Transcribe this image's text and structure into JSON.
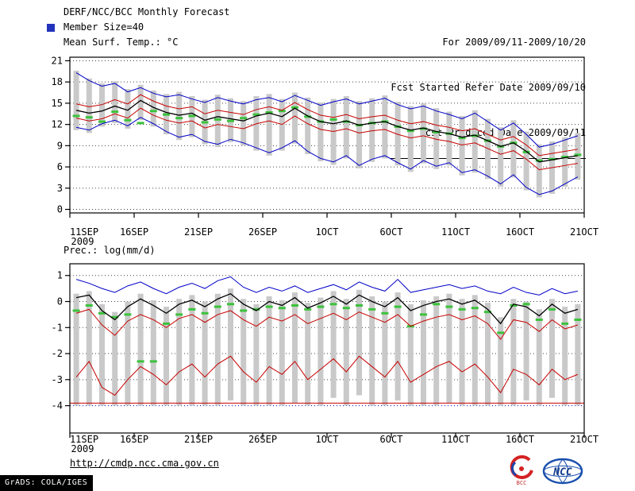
{
  "header": {
    "title": "DERF/NCC/BCC Monthly Forecast",
    "member_size": "Member Size=40",
    "top_var_label": "Mean Surf. Temp.: °C",
    "for_range": "For 2009/09/11-2009/10/20",
    "refer_date": "Fcst Started Refer Date 2009/09/10",
    "produced_date": "Fcst Produced Date 2009/09/11"
  },
  "bottom_var_label": "Prec.: log(mm/d)",
  "footer": {
    "url": "http://cmdp.ncc.cma.gov.cn",
    "grads_credit": "GrADS: COLA/IGES",
    "bcc_text": "BCC",
    "ncc_text": "NCC"
  },
  "colors": {
    "envelope_blue": "#0000c8",
    "quartile_red": "#c80000",
    "mean_black": "#000000",
    "obs_green": "#3cc23c",
    "spread_gray": "#c9c9c9",
    "grid": "#444444",
    "member_marker_blue": "#2233bb"
  },
  "chart_data": [
    {
      "type": "line",
      "title": "Mean Surf. Temp.: °C",
      "x_tick_labels": [
        "11SEP",
        "16SEP",
        "21SEP",
        "26SEP",
        "1OCT",
        "6OCT",
        "11OCT",
        "16OCT",
        "21OCT"
      ],
      "x_tick_days": [
        0,
        5,
        10,
        15,
        20,
        25,
        30,
        35,
        40
      ],
      "x_sub_label": "2009",
      "ylim": [
        0,
        21
      ],
      "yticks": [
        0,
        3,
        6,
        9,
        12,
        15,
        18,
        21
      ],
      "ytick_labels": [
        "0",
        "3",
        "6",
        "9",
        "12",
        "15",
        "18",
        "21"
      ],
      "bars": {
        "name": "ensemble-spread",
        "color": "#c9c9c9",
        "low": [
          11.2,
          10.8,
          11.7,
          12.2,
          11.4,
          12.6,
          11.7,
          10.6,
          9.8,
          10.2,
          9.2,
          8.8,
          9.5,
          9.0,
          8.3,
          7.6,
          8.3,
          9.3,
          7.8,
          6.8,
          6.3,
          7.2,
          5.8,
          6.7,
          7.2,
          6.2,
          5.3,
          6.5,
          5.7,
          6.2,
          4.8,
          5.2,
          4.3,
          3.2,
          4.5,
          2.7,
          1.7,
          2.2,
          3.2,
          4.2
        ],
        "high": [
          19.6,
          18.5,
          17.8,
          18.1,
          17.0,
          17.6,
          16.8,
          16.3,
          16.6,
          16.0,
          15.5,
          16.2,
          15.7,
          15.3,
          16.0,
          16.3,
          15.6,
          16.5,
          15.8,
          15.1,
          15.6,
          16.0,
          15.3,
          15.7,
          16.1,
          15.2,
          14.6,
          15.0,
          14.3,
          13.8,
          13.2,
          14.0,
          12.8,
          11.6,
          12.6,
          11.0,
          9.2,
          9.6,
          10.2,
          10.8
        ]
      },
      "markers": {
        "name": "observation-dashes",
        "color": "#3cc23c",
        "values": [
          13.2,
          13.0,
          12.4,
          13.8,
          12.6,
          12.2,
          13.9,
          13.4,
          12.9,
          13.2,
          12.3,
          12.7,
          12.5,
          12.9,
          13.4,
          13.7,
          13.9,
          14.4,
          13.1,
          12.4,
          12.7,
          12.4,
          11.9,
          12.2,
          12.4,
          11.7,
          11.1,
          11.4,
          10.9,
          10.7,
          10.1,
          10.4,
          9.7,
          8.9,
          9.4,
          8.1,
          6.9,
          7.1,
          7.4,
          7.7
        ]
      },
      "series": [
        {
          "name": "ensemble-max",
          "color": "#0000c8",
          "width": 1,
          "values": [
            19.3,
            18.2,
            17.4,
            17.8,
            16.6,
            17.2,
            16.4,
            15.9,
            16.2,
            15.6,
            15.1,
            15.8,
            15.3,
            14.9,
            15.5,
            15.8,
            15.2,
            16.1,
            15.4,
            14.7,
            15.2,
            15.6,
            14.9,
            15.3,
            15.7,
            14.8,
            14.2,
            14.6,
            13.9,
            13.4,
            12.8,
            13.6,
            12.4,
            11.2,
            12.2,
            10.6,
            8.8,
            9.2,
            9.8,
            10.4
          ]
        },
        {
          "name": "upper-quartile",
          "color": "#c80000",
          "width": 1,
          "values": [
            14.9,
            14.5,
            14.8,
            15.5,
            14.9,
            16.2,
            15.3,
            14.6,
            14.2,
            14.5,
            13.5,
            14.0,
            13.7,
            13.4,
            14.1,
            14.5,
            14.0,
            15.1,
            14.1,
            13.3,
            13.0,
            13.4,
            12.8,
            13.1,
            13.3,
            12.6,
            12.1,
            12.4,
            11.9,
            11.6,
            11.1,
            11.4,
            10.6,
            9.8,
            10.3,
            9.1,
            7.6,
            7.9,
            8.2,
            8.5
          ]
        },
        {
          "name": "ensemble-mean",
          "color": "#000000",
          "width": 1.3,
          "values": [
            14.0,
            13.6,
            13.9,
            14.6,
            14.0,
            15.4,
            14.4,
            13.7,
            13.3,
            13.6,
            12.6,
            13.1,
            12.8,
            12.5,
            13.2,
            13.6,
            13.1,
            14.3,
            13.2,
            12.4,
            12.1,
            12.5,
            11.9,
            12.2,
            12.4,
            11.7,
            11.2,
            11.5,
            11.0,
            10.7,
            10.2,
            10.5,
            9.7,
            8.9,
            9.4,
            8.2,
            6.7,
            7.0,
            7.3,
            7.6
          ]
        },
        {
          "name": "lower-quartile",
          "color": "#c80000",
          "width": 1,
          "values": [
            12.9,
            12.5,
            12.8,
            13.5,
            12.9,
            14.3,
            13.3,
            12.6,
            12.2,
            12.5,
            11.5,
            12.0,
            11.7,
            11.4,
            12.1,
            12.5,
            12.0,
            13.2,
            12.1,
            11.3,
            11.0,
            11.4,
            10.8,
            11.1,
            11.3,
            10.6,
            10.1,
            10.4,
            9.9,
            9.6,
            9.1,
            9.4,
            8.6,
            7.8,
            8.3,
            7.1,
            5.6,
            5.9,
            6.2,
            6.5
          ]
        },
        {
          "name": "ensemble-min",
          "color": "#0000c8",
          "width": 1,
          "values": [
            11.6,
            11.2,
            12.1,
            12.6,
            11.8,
            13.0,
            12.1,
            11.0,
            10.2,
            10.6,
            9.6,
            9.2,
            9.9,
            9.4,
            8.7,
            8.0,
            8.7,
            9.7,
            8.2,
            7.2,
            6.7,
            7.6,
            6.2,
            7.1,
            7.6,
            6.6,
            5.7,
            6.9,
            6.1,
            6.6,
            5.2,
            5.6,
            4.7,
            3.6,
            4.9,
            3.1,
            2.1,
            2.6,
            3.6,
            4.6
          ]
        }
      ]
    },
    {
      "type": "line",
      "title": "Prec.: log(mm/d)",
      "x_tick_labels": [
        "11SEP",
        "16SEP",
        "21SEP",
        "26SEP",
        "1OCT",
        "6OCT",
        "11OCT",
        "16OCT",
        "21OCT"
      ],
      "x_tick_days": [
        0,
        5,
        10,
        15,
        20,
        25,
        30,
        35,
        40
      ],
      "x_sub_label": "2009",
      "ylim": [
        -4,
        1
      ],
      "yticks": [
        -4,
        -3,
        -2,
        -1,
        0,
        1
      ],
      "ytick_labels": [
        "-4",
        "-3",
        "-2",
        "-1",
        "0",
        "1"
      ],
      "grid_overrides": {
        "-4": "#0000c8"
      },
      "flat_lines": [
        {
          "name": "min-floor-red",
          "value": -3.9,
          "color": "#c80000",
          "style": "solid"
        }
      ],
      "bars": {
        "name": "ensemble-spread",
        "color": "#c9c9c9",
        "low": [
          -4,
          -4,
          -4,
          -4,
          -4,
          -4,
          -4,
          -4,
          -4,
          -4,
          -4,
          -4,
          -3.8,
          -4,
          -4,
          -4,
          -4,
          -3.9,
          -4,
          -4,
          -3.7,
          -4,
          -3.6,
          -4,
          -4,
          -3.8,
          -4,
          -4,
          -4,
          -3.9,
          -4,
          -4,
          -4,
          -4,
          -4,
          -3.8,
          -4,
          -3.7,
          -4,
          -4
        ],
        "high": [
          0.3,
          0.4,
          -0.1,
          -0.4,
          0,
          0.3,
          0.05,
          -0.2,
          0.1,
          0.25,
          0,
          0.3,
          0.5,
          0.1,
          -0.1,
          0.2,
          0.05,
          0.35,
          -0.05,
          0.15,
          0.4,
          0.1,
          0.45,
          0.2,
          0,
          0.35,
          -0.1,
          0.05,
          0.2,
          0.3,
          0.1,
          0.25,
          -0.05,
          -0.6,
          0.1,
          0,
          -0.3,
          0.1,
          -0.2,
          -0.1
        ]
      },
      "markers": {
        "name": "observation-dashes",
        "color": "#3cc23c",
        "values": [
          -0.35,
          -0.15,
          -0.45,
          -0.6,
          -0.5,
          -2.3,
          -2.3,
          -0.85,
          -0.5,
          -0.3,
          -0.45,
          -0.2,
          -0.1,
          -0.35,
          -0.3,
          -0.2,
          -0.25,
          -0.15,
          -0.3,
          -0.2,
          -0.1,
          -0.25,
          -0.15,
          -0.3,
          -0.45,
          -0.2,
          -0.95,
          -0.5,
          -0.1,
          -0.2,
          -0.3,
          -0.25,
          -0.4,
          -1.2,
          -0.15,
          -0.1,
          -0.7,
          -0.3,
          -0.85,
          -0.7
        ]
      },
      "series": [
        {
          "name": "ensemble-max",
          "color": "#0000c8",
          "width": 1,
          "values": [
            0.85,
            0.7,
            0.5,
            0.35,
            0.6,
            0.75,
            0.5,
            0.3,
            0.55,
            0.7,
            0.5,
            0.8,
            0.95,
            0.55,
            0.35,
            0.55,
            0.4,
            0.6,
            0.35,
            0.5,
            0.65,
            0.45,
            0.75,
            0.55,
            0.4,
            0.85,
            0.35,
            0.45,
            0.55,
            0.65,
            0.5,
            0.6,
            0.4,
            0.3,
            0.55,
            0.35,
            0.25,
            0.5,
            0.3,
            0.4
          ]
        },
        {
          "name": "ensemble-median",
          "color": "#000000",
          "width": 1.3,
          "values": [
            0.15,
            0.25,
            -0.35,
            -0.7,
            -0.2,
            0.1,
            -0.15,
            -0.45,
            -0.1,
            0.05,
            -0.2,
            0.1,
            0.3,
            -0.1,
            -0.35,
            0,
            -0.15,
            0.15,
            -0.25,
            -0.05,
            0.2,
            -0.1,
            0.25,
            0,
            -0.2,
            0.15,
            -0.35,
            -0.15,
            0,
            0.1,
            -0.1,
            0.05,
            -0.3,
            -0.85,
            -0.1,
            -0.2,
            -0.55,
            -0.1,
            -0.45,
            -0.3
          ]
        },
        {
          "name": "upper-quartile",
          "color": "#c80000",
          "width": 1,
          "values": [
            -0.45,
            -0.3,
            -0.9,
            -1.3,
            -0.75,
            -0.5,
            -0.7,
            -1.0,
            -0.65,
            -0.5,
            -0.8,
            -0.5,
            -0.35,
            -0.7,
            -0.95,
            -0.6,
            -0.75,
            -0.5,
            -0.85,
            -0.65,
            -0.45,
            -0.7,
            -0.4,
            -0.6,
            -0.8,
            -0.5,
            -0.95,
            -0.75,
            -0.6,
            -0.5,
            -0.7,
            -0.55,
            -0.85,
            -1.45,
            -0.7,
            -0.8,
            -1.15,
            -0.7,
            -1.05,
            -0.9
          ]
        },
        {
          "name": "lower-quartile",
          "color": "#c80000",
          "width": 1,
          "values": [
            -2.9,
            -2.3,
            -3.3,
            -3.6,
            -3.0,
            -2.5,
            -2.8,
            -3.2,
            -2.7,
            -2.4,
            -2.9,
            -2.4,
            -2.1,
            -2.7,
            -3.1,
            -2.5,
            -2.8,
            -2.3,
            -3.0,
            -2.6,
            -2.2,
            -2.7,
            -2.1,
            -2.5,
            -2.9,
            -2.3,
            -3.1,
            -2.8,
            -2.5,
            -2.3,
            -2.7,
            -2.4,
            -2.9,
            -3.5,
            -2.6,
            -2.8,
            -3.2,
            -2.6,
            -3.0,
            -2.8
          ]
        }
      ]
    }
  ]
}
